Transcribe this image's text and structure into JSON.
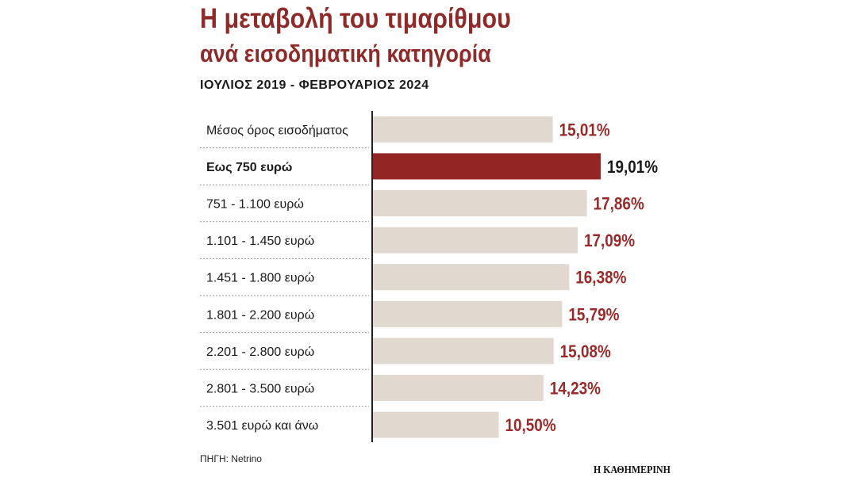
{
  "header": {
    "title_line1": "Η μεταβολή του τιμαρίθμου",
    "title_line2": "ανά εισοδηματική κατηγορία",
    "subtitle": "ΙΟΥΛΙΟΣ 2019 - ΦΕΒΡΟΥΑΡΙΟΣ 2024"
  },
  "chart_data": {
    "type": "bar",
    "orientation": "horizontal",
    "categories": [
      "Μέσος όρος εισοδήματος",
      "Εως 750 ευρώ",
      "751 - 1.100 ευρώ",
      "1.101 - 1.450 ευρώ",
      "1.451 - 1.800 ευρώ",
      "1.801 - 2.200 ευρώ",
      "2.201 - 2.800 ευρώ",
      "2.801 - 3.500 ευρώ",
      "3.501 ευρώ και άνω"
    ],
    "values": [
      15.01,
      19.01,
      17.86,
      17.09,
      16.38,
      15.79,
      15.08,
      14.23,
      10.5
    ],
    "value_labels": [
      "15,01%",
      "19,01%",
      "17,86%",
      "17,09%",
      "16,38%",
      "15,79%",
      "15,08%",
      "14,23%",
      "10,50%"
    ],
    "highlight_index": 1,
    "xlim": [
      0,
      19.01
    ],
    "colors": {
      "bar": "#e1d8d0",
      "highlight_bar": "#932525",
      "value_text": "#9a2a2a",
      "highlight_value_text": "#1a1a1a",
      "label_text": "#1a1a1a",
      "axis": "#222222",
      "separator": "#999999"
    }
  },
  "footer": {
    "source": "ΠΗΓΗ: Netrino",
    "publisher": "Η ΚΑΘΗΜΕΡΙΝΗ"
  }
}
